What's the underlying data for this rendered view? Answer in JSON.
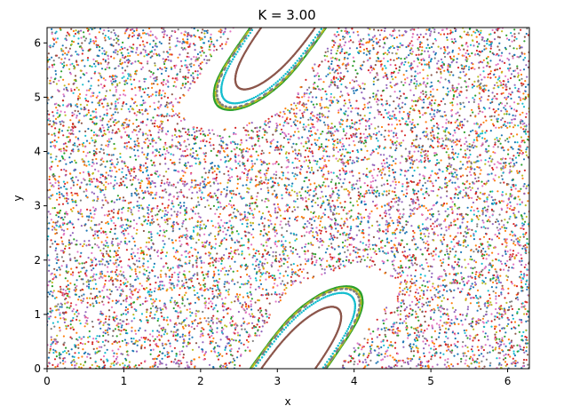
{
  "chart_data": {
    "type": "scatter",
    "title": "K = 3.00",
    "xlabel": "x",
    "ylabel": "y",
    "xlim": [
      0,
      6.283
    ],
    "ylim": [
      0,
      6.283
    ],
    "xticks": [
      "0",
      "1",
      "2",
      "3",
      "4",
      "5",
      "6"
    ],
    "yticks": [
      "0",
      "1",
      "2",
      "3",
      "4",
      "5",
      "6"
    ],
    "grid": false,
    "legend": "none",
    "map": "standard map: y' = y + K sin(x), x' = x + y' (mod 2π)",
    "K": 3.0,
    "series": [
      {
        "x0": 3.6,
        "y0": 1.4,
        "color": "#2ca02c"
      },
      {
        "x0": 3.35,
        "y0": 1.15,
        "color": "#bcbd22"
      },
      {
        "x0": 3.75,
        "y0": 1.38,
        "color": "#17becf"
      },
      {
        "x0": 3.7,
        "y0": 1.42,
        "color": "#7f7f7f"
      },
      {
        "x0": 0.5,
        "y0": 0.3,
        "color": "#1f77b4"
      },
      {
        "x0": 1.3,
        "y0": 2.1,
        "color": "#ff7f0e"
      },
      {
        "x0": 2.2,
        "y0": 3.5,
        "color": "#d62728"
      },
      {
        "x0": 4.7,
        "y0": 2.7,
        "color": "#9467bd"
      },
      {
        "x0": 5.5,
        "y0": 4.3,
        "color": "#8c564b"
      },
      {
        "x0": 0.9,
        "y0": 5.1,
        "color": "#e377c2"
      },
      {
        "x0": 2.8,
        "y0": 3.1,
        "color": "#7f7f7f"
      },
      {
        "x0": 5.9,
        "y0": 1.0,
        "color": "#17becf"
      },
      {
        "x0": 0.2,
        "y0": 3.9,
        "color": "#2ca02c"
      },
      {
        "x0": 1.8,
        "y0": 0.8,
        "color": "#bcbd22"
      },
      {
        "x0": 4.3,
        "y0": 5.8,
        "color": "#1f77b4"
      },
      {
        "x0": 3.1,
        "y0": 2.2,
        "color": "#ff7f0e"
      },
      {
        "x0": 5.1,
        "y0": 3.3,
        "color": "#d62728"
      },
      {
        "x0": 0.6,
        "y0": 1.7,
        "color": "#9467bd"
      },
      {
        "x0": 2.5,
        "y0": 5.6,
        "color": "#8c564b"
      },
      {
        "x0": 4.9,
        "y0": 0.5,
        "color": "#e377c2"
      }
    ]
  }
}
